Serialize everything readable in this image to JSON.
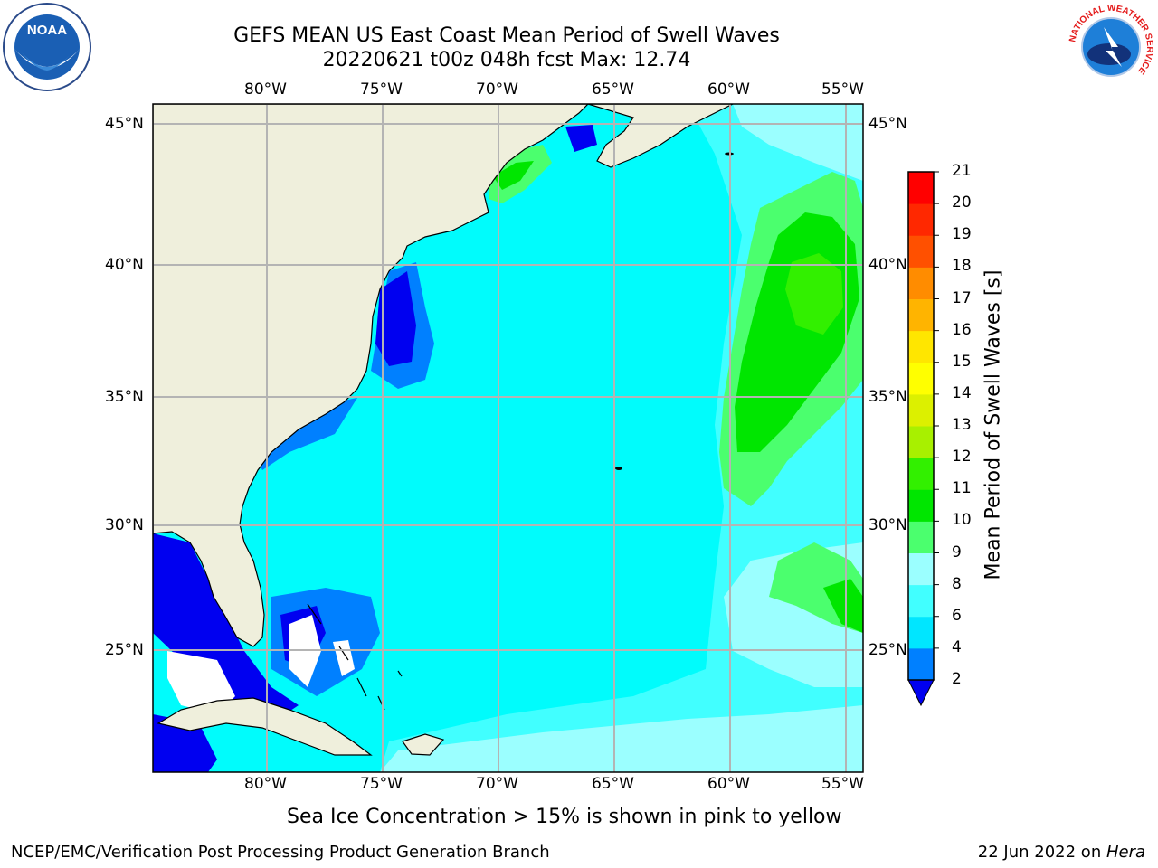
{
  "title": {
    "line1": "GEFS MEAN US East Coast Mean Period of Swell Waves",
    "line2": "20220621 t00z 048h fcst   Max: 12.74"
  },
  "map": {
    "lon_ticks": [
      "80°W",
      "75°W",
      "70°W",
      "65°W",
      "60°W",
      "55°W"
    ],
    "lat_ticks": [
      "45°N",
      "40°N",
      "35°N",
      "30°N",
      "25°N"
    ],
    "colors": {
      "land": "#efefdc",
      "grid": "#b4b4b4",
      "ocean_base": "#00fcfc"
    }
  },
  "colorbar": {
    "title": "Mean Period of Swell Waves [s]",
    "levels": [
      "2",
      "4",
      "6",
      "8",
      "9",
      "10",
      "11",
      "12",
      "13",
      "14",
      "15",
      "16",
      "17",
      "18",
      "19",
      "20",
      "21"
    ],
    "colors": [
      "#0000f0",
      "#0080ff",
      "#00e6ff",
      "#41ffff",
      "#9bffff",
      "#4bff6e",
      "#00e600",
      "#32f000",
      "#a8f000",
      "#dcf000",
      "#ffff00",
      "#ffe600",
      "#ffb400",
      "#ff8c00",
      "#ff5000",
      "#ff2800",
      "#ff0000"
    ]
  },
  "caption": "Sea Ice Concentration > 15% is shown in pink to yellow",
  "footer": {
    "left": "NCEP/EMC/Verification Post Processing Product Generation Branch",
    "right_date": "22 Jun 2022 on ",
    "right_host": "Hera"
  },
  "logos": {
    "noaa_text": "NOAA",
    "nws_text": "NATIONAL WEATHER SERVICE"
  }
}
